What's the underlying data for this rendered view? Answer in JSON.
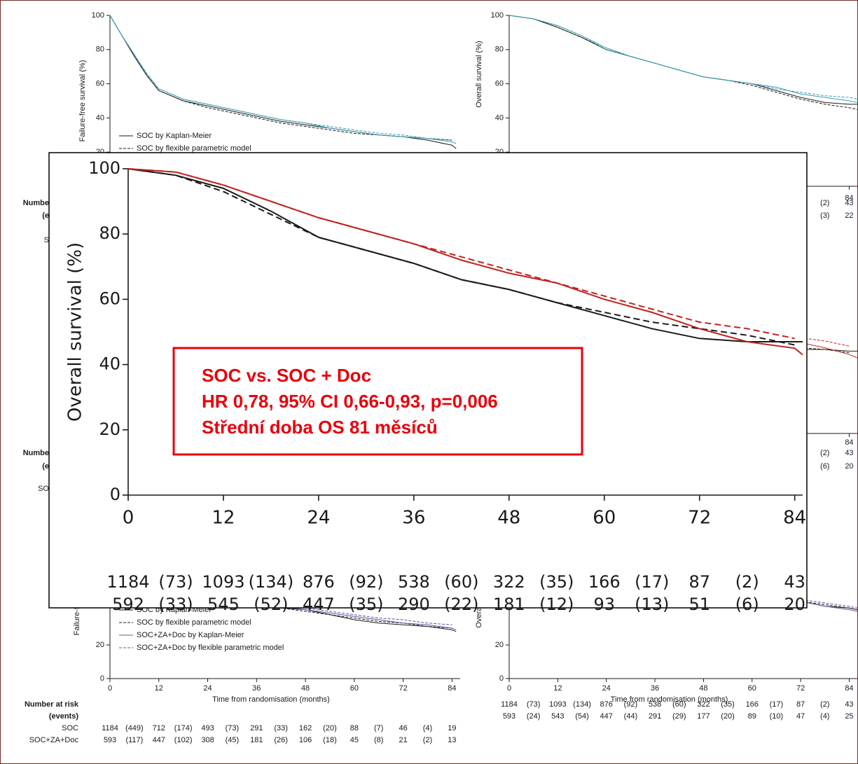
{
  "chart_data": [
    {
      "type": "line",
      "ylabel": "Overall survival (%)",
      "xlim": [
        0,
        85
      ],
      "ylim": [
        0,
        100
      ],
      "xticks": [
        0,
        12,
        24,
        36,
        48,
        60,
        72,
        84
      ],
      "yticks": [
        0,
        20,
        40,
        60,
        80,
        100
      ],
      "x": [
        0,
        6,
        12,
        18,
        24,
        30,
        36,
        42,
        48,
        54,
        60,
        66,
        72,
        78,
        84,
        85
      ],
      "series": [
        {
          "color": "#1a1a1a",
          "values": [
            100,
            98,
            94,
            87,
            79,
            75,
            71,
            66,
            63,
            59,
            55,
            51,
            48,
            47,
            47,
            47
          ]
        },
        {
          "color": "#1a1a1a",
          "dash": true,
          "values": [
            100,
            98,
            93,
            86,
            79,
            75,
            71,
            66,
            63,
            59,
            56,
            53,
            51,
            49,
            46,
            null
          ]
        },
        {
          "color": "#c0231e",
          "values": [
            100,
            99,
            95,
            90,
            85,
            81,
            77,
            72,
            68,
            65,
            60,
            56,
            51,
            47,
            45,
            43
          ]
        },
        {
          "color": "#c0231e",
          "dash": true,
          "values": [
            100,
            99,
            95,
            90,
            85,
            81,
            77,
            73,
            69,
            65,
            61,
            57,
            53,
            51,
            48,
            null
          ]
        }
      ],
      "annotation": [
        "SOC vs. SOC + Doc",
        "HR 0,78, 95% CI 0,66-0,93, p=0,006",
        "Střední doba OS 81 měsíců"
      ],
      "risk_table": {
        "rows": [
          [
            "1184",
            "(73)",
            "1093",
            "(134)",
            "876",
            "(92)",
            "538",
            "(60)",
            "322",
            "(35)",
            "166",
            "(17)",
            "87",
            "(2)",
            "43"
          ],
          [
            "592",
            "(33)",
            "545",
            "(52)",
            "447",
            "(35)",
            "290",
            "(22)",
            "181",
            "(12)",
            "93",
            "(13)",
            "51",
            "(6)",
            "20"
          ]
        ]
      }
    },
    {
      "type": "line",
      "ylabel": "Failure-free survival (%)",
      "xlim": [
        0,
        86
      ],
      "ylim": [
        0,
        100
      ],
      "yticks": [
        20,
        40,
        60,
        80,
        100
      ],
      "legend": "lower left",
      "x": [
        0,
        3,
        6,
        9,
        12,
        18,
        24,
        30,
        36,
        42,
        48,
        54,
        60,
        66,
        72,
        78,
        84,
        85
      ],
      "series": [
        {
          "name": "SOC by Kaplan-Meier",
          "color": "#1a1a1a",
          "values": [
            100,
            88,
            76,
            65,
            56,
            50,
            47,
            44,
            41,
            38,
            36,
            34,
            32,
            30,
            29,
            27,
            24,
            22
          ]
        },
        {
          "name": "SOC by flexible parametric model",
          "color": "#1a1a1a",
          "dash": true,
          "values": [
            100,
            88,
            76,
            65,
            56,
            50,
            46,
            43,
            40,
            37,
            35,
            33,
            31,
            30,
            29,
            28,
            27,
            null
          ]
        },
        {
          "color": "#3a9bb5",
          "values": [
            100,
            88,
            77,
            66,
            57,
            51,
            48,
            45,
            42,
            39,
            37,
            34,
            32,
            30,
            29,
            28,
            26,
            25
          ]
        },
        {
          "color": "#3a9bb5",
          "dash": true,
          "values": [
            100,
            88,
            77,
            66,
            57,
            51,
            48,
            45,
            42,
            39,
            37,
            35,
            33,
            31,
            30,
            28,
            27,
            null
          ]
        }
      ],
      "risk_table": {
        "title": [
          "Numbe",
          "(e"
        ],
        "row_labels": [
          null,
          "S"
        ]
      }
    },
    {
      "type": "line",
      "ylabel": "Overall survival (%)",
      "xlim": [
        0,
        86
      ],
      "ylim": [
        0,
        100
      ],
      "xticks": [
        84
      ],
      "yticks": [
        20,
        40,
        60,
        80,
        100
      ],
      "x": [
        0,
        6,
        12,
        18,
        24,
        30,
        36,
        42,
        48,
        54,
        60,
        66,
        72,
        78,
        84,
        86
      ],
      "series": [
        {
          "color": "#1a1a1a",
          "values": [
            100,
            98,
            93,
            87,
            80,
            76,
            72,
            68,
            64,
            62,
            60,
            56,
            52,
            49,
            48,
            48
          ]
        },
        {
          "color": "#1a1a1a",
          "dash": true,
          "values": [
            100,
            98,
            93,
            87,
            80,
            76,
            72,
            68,
            64,
            62,
            59,
            55,
            51,
            48,
            46,
            45
          ]
        },
        {
          "color": "#3a9bb5",
          "values": [
            100,
            98,
            94,
            88,
            81,
            76,
            72,
            68,
            64,
            62,
            60,
            58,
            54,
            52,
            50,
            49
          ]
        },
        {
          "color": "#3a9bb5",
          "dash": true,
          "values": [
            100,
            98,
            94,
            88,
            80,
            76,
            72,
            68,
            64,
            62,
            60,
            57,
            55,
            53,
            52,
            51
          ]
        }
      ],
      "risk_table": {
        "rows": [
          [
            null,
            null,
            null,
            null,
            null,
            null,
            null,
            null,
            null,
            null,
            null,
            null,
            null,
            "(2)",
            "43"
          ],
          [
            null,
            null,
            null,
            null,
            null,
            null,
            null,
            null,
            null,
            null,
            null,
            null,
            null,
            "(3)",
            "22"
          ]
        ]
      }
    },
    {
      "type": "line",
      "risk_table": {
        "title": [
          "Numbe",
          "(e"
        ],
        "row_labels": [
          null,
          "SO"
        ]
      }
    },
    {
      "type": "line",
      "xlim": [
        0,
        86
      ],
      "ylim": [
        0,
        100
      ],
      "xticks": [
        84
      ],
      "x": [
        72,
        78,
        84,
        86
      ],
      "series": [
        {
          "color": "#1a1a1a",
          "values": [
            50,
            50,
            49,
            49
          ]
        },
        {
          "color": "#1a1a1a",
          "dash": true,
          "values": [
            51,
            50,
            48,
            null
          ]
        },
        {
          "color": "#c0231e",
          "values": [
            54,
            51,
            47,
            45
          ]
        },
        {
          "color": "#c0231e",
          "dash": true,
          "values": [
            57,
            55,
            52,
            null
          ]
        }
      ],
      "risk_table": {
        "rows": [
          [
            null,
            null,
            null,
            null,
            null,
            null,
            null,
            null,
            null,
            null,
            null,
            null,
            null,
            "(2)",
            "43"
          ],
          [
            null,
            null,
            null,
            null,
            null,
            null,
            null,
            null,
            null,
            null,
            null,
            null,
            null,
            "(6)",
            "20"
          ]
        ]
      }
    },
    {
      "type": "line",
      "ylabel": "Failure-free survival (%)",
      "xlabel": "Time from randomisation (months)",
      "xlim": [
        0,
        86
      ],
      "ylim": [
        0,
        100
      ],
      "xticks": [
        0,
        12,
        24,
        36,
        48,
        60,
        72,
        84
      ],
      "yticks": [
        0,
        20
      ],
      "legend": "lower left",
      "x": [
        0,
        6,
        12,
        18,
        24,
        30,
        36,
        42,
        48,
        54,
        60,
        66,
        72,
        78,
        84,
        85
      ],
      "series": [
        {
          "name": "SOC by Kaplan-Meier",
          "color": "#1a1a1a",
          "values": [
            100,
            78,
            58,
            51,
            47,
            45,
            43,
            42,
            41,
            38,
            35,
            33,
            32,
            31,
            29,
            28
          ]
        },
        {
          "name": "SOC by flexible parametric model",
          "color": "#1a1a1a",
          "dash": true,
          "values": [
            100,
            78,
            58,
            51,
            47,
            45,
            43,
            42,
            40,
            38,
            36,
            34,
            33,
            31,
            30,
            null
          ]
        },
        {
          "name": "SOC+ZA+Doc by Kaplan-Meier",
          "color": "#6b4fa0",
          "values": [
            100,
            80,
            62,
            55,
            50,
            47,
            45,
            43,
            41,
            39,
            37,
            35,
            33,
            32,
            30,
            29
          ]
        },
        {
          "name": "SOC+ZA+Doc by flexible parametric model",
          "color": "#6b4fa0",
          "dash": true,
          "values": [
            100,
            80,
            62,
            55,
            50,
            47,
            45,
            43,
            42,
            40,
            38,
            36,
            35,
            33,
            32,
            null
          ]
        }
      ],
      "risk_table": {
        "title": [
          "Number at risk",
          "(events)"
        ],
        "row_labels": [
          "SOC",
          "SOC+ZA+Doc"
        ],
        "rows": [
          [
            "1184",
            "(449)",
            "712",
            "(174)",
            "493",
            "(73)",
            "291",
            "(33)",
            "162",
            "(20)",
            "88",
            "(7)",
            "46",
            "(4)",
            "19"
          ],
          [
            "593",
            "(117)",
            "447",
            "(102)",
            "308",
            "(45)",
            "181",
            "(26)",
            "106",
            "(18)",
            "45",
            "(8)",
            "21",
            "(2)",
            "13"
          ]
        ]
      }
    },
    {
      "type": "line",
      "ylabel": "Overall survival (%)",
      "xlabel": "Time from randomisation (months)",
      "xlim": [
        0,
        86
      ],
      "ylim": [
        0,
        100
      ],
      "xticks": [
        0,
        12,
        24,
        36,
        48,
        60,
        72,
        84
      ],
      "yticks": [
        0,
        20
      ],
      "x": [
        0,
        6,
        12,
        18,
        24,
        30,
        36,
        42,
        48,
        54,
        60,
        66,
        72,
        78,
        84,
        86
      ],
      "series": [
        {
          "color": "#1a1a1a",
          "values": [
            100,
            98,
            93,
            87,
            80,
            76,
            72,
            68,
            64,
            61,
            58,
            53,
            46,
            43,
            42,
            41
          ]
        },
        {
          "color": "#1a1a1a",
          "dash": true,
          "values": [
            100,
            98,
            93,
            87,
            80,
            76,
            72,
            68,
            64,
            61,
            58,
            53,
            46,
            44,
            42,
            41
          ]
        },
        {
          "color": "#6b4fa0",
          "values": [
            100,
            98,
            94,
            88,
            81,
            77,
            73,
            69,
            65,
            62,
            59,
            54,
            46,
            43,
            41,
            40
          ]
        },
        {
          "color": "#6b4fa0",
          "dash": true,
          "values": [
            100,
            98,
            94,
            88,
            81,
            77,
            73,
            69,
            65,
            62,
            59,
            54,
            47,
            45,
            43,
            42
          ]
        }
      ],
      "risk_table": {
        "rows": [
          [
            "1184",
            "(73)",
            "1093",
            "(134)",
            "876",
            "(92)",
            "538",
            "(60)",
            "322",
            "(35)",
            "166",
            "(17)",
            "87",
            "(2)",
            "43"
          ],
          [
            "593",
            "(24)",
            "543",
            "(54)",
            "447",
            "(44)",
            "291",
            "(29)",
            "177",
            "(20)",
            "89",
            "(10)",
            "47",
            "(4)",
            "25"
          ]
        ]
      }
    }
  ]
}
